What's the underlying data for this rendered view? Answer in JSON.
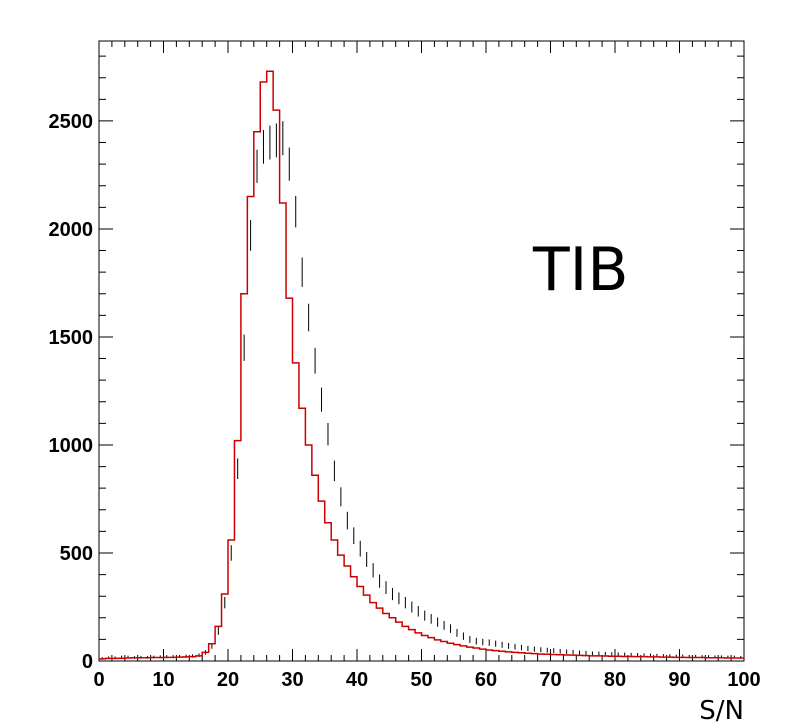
{
  "chart_data": {
    "type": "histogram",
    "title": "",
    "annotation": "TIB",
    "xlabel": "S/N",
    "ylabel": "",
    "xlim": [
      0,
      100
    ],
    "ylim": [
      0,
      2870
    ],
    "bin_width": 1,
    "x_ticks": [
      0,
      10,
      20,
      30,
      40,
      50,
      60,
      70,
      80,
      90,
      100
    ],
    "x_tick_labels": [
      "0",
      "10",
      "20",
      "30",
      "40",
      "50",
      "60",
      "70",
      "80",
      "90",
      "100"
    ],
    "y_ticks": [
      0,
      500,
      1000,
      1500,
      2000,
      2500
    ],
    "y_tick_labels": [
      "0",
      "500",
      "1000",
      "1500",
      "2000",
      "2500"
    ],
    "grid": false,
    "colors": {
      "simulation": "#cc0000",
      "data": "#000000"
    },
    "series": [
      {
        "style": "step",
        "x": [
          0,
          1,
          2,
          3,
          4,
          5,
          6,
          7,
          8,
          9,
          10,
          11,
          12,
          13,
          14,
          15,
          16,
          17,
          18,
          19,
          20,
          21,
          22,
          23,
          24,
          25,
          26,
          27,
          28,
          29,
          30,
          31,
          32,
          33,
          34,
          35,
          36,
          37,
          38,
          39,
          40,
          41,
          42,
          43,
          44,
          45,
          46,
          47,
          48,
          49,
          50,
          51,
          52,
          53,
          54,
          55,
          56,
          57,
          58,
          59,
          60,
          61,
          62,
          63,
          64,
          65,
          66,
          67,
          68,
          69,
          70,
          71,
          72,
          73,
          74,
          75,
          76,
          77,
          78,
          79,
          80,
          81,
          82,
          83,
          84,
          85,
          86,
          87,
          88,
          89,
          90,
          91,
          92,
          93,
          94,
          95,
          96,
          97,
          98,
          99
        ],
        "values": [
          10,
          12,
          12,
          13,
          14,
          15,
          15,
          15,
          16,
          16,
          17,
          17,
          18,
          19,
          20,
          24,
          40,
          80,
          160,
          310,
          560,
          1020,
          1700,
          2150,
          2450,
          2680,
          2730,
          2550,
          2120,
          1680,
          1380,
          1170,
          1000,
          860,
          740,
          640,
          560,
          490,
          440,
          390,
          345,
          305,
          270,
          245,
          220,
          200,
          180,
          160,
          145,
          130,
          118,
          108,
          98,
          90,
          82,
          76,
          70,
          64,
          60,
          55,
          51,
          48,
          45,
          42,
          40,
          38,
          36,
          34,
          32,
          31,
          30,
          29,
          28,
          27,
          26,
          25,
          24,
          24,
          23,
          22,
          22,
          21,
          21,
          20,
          20,
          19,
          19,
          18,
          18,
          17,
          17,
          16,
          16,
          16,
          15,
          15,
          15,
          14,
          14,
          14
        ]
      },
      {
        "style": "errorbar",
        "x": [
          0,
          1,
          2,
          3,
          4,
          5,
          6,
          7,
          8,
          9,
          10,
          11,
          12,
          13,
          14,
          15,
          16,
          17,
          18,
          19,
          20,
          21,
          22,
          23,
          24,
          25,
          26,
          27,
          28,
          29,
          30,
          31,
          32,
          33,
          34,
          35,
          36,
          37,
          38,
          39,
          40,
          41,
          42,
          43,
          44,
          45,
          46,
          47,
          48,
          49,
          50,
          51,
          52,
          53,
          54,
          55,
          56,
          57,
          58,
          59,
          60,
          61,
          62,
          63,
          64,
          65,
          66,
          67,
          68,
          69,
          70,
          71,
          72,
          73,
          74,
          75,
          76,
          77,
          78,
          79,
          80,
          81,
          82,
          83,
          84,
          85,
          86,
          87,
          88,
          89,
          90,
          91,
          92,
          93,
          94,
          95,
          96,
          97,
          98,
          99
        ],
        "values": [
          12,
          15,
          15,
          18,
          18,
          16,
          17,
          17,
          18,
          19,
          20,
          20,
          21,
          22,
          23,
          27,
          40,
          70,
          140,
          270,
          500,
          890,
          1450,
          1970,
          2290,
          2380,
          2400,
          2410,
          2420,
          2300,
          2080,
          1800,
          1590,
          1390,
          1210,
          1050,
          880,
          760,
          650,
          580,
          520,
          470,
          420,
          370,
          340,
          310,
          290,
          270,
          250,
          230,
          210,
          195,
          180,
          165,
          150,
          130,
          115,
          100,
          92,
          88,
          85,
          80,
          75,
          70,
          66,
          62,
          58,
          55,
          52,
          50,
          48,
          45,
          43,
          41,
          39,
          37,
          35,
          34,
          33,
          32,
          31,
          30,
          29,
          28,
          27,
          26,
          25,
          24,
          23,
          22,
          22,
          21,
          21,
          20,
          20,
          19,
          19,
          18,
          18,
          17
        ]
      }
    ]
  }
}
